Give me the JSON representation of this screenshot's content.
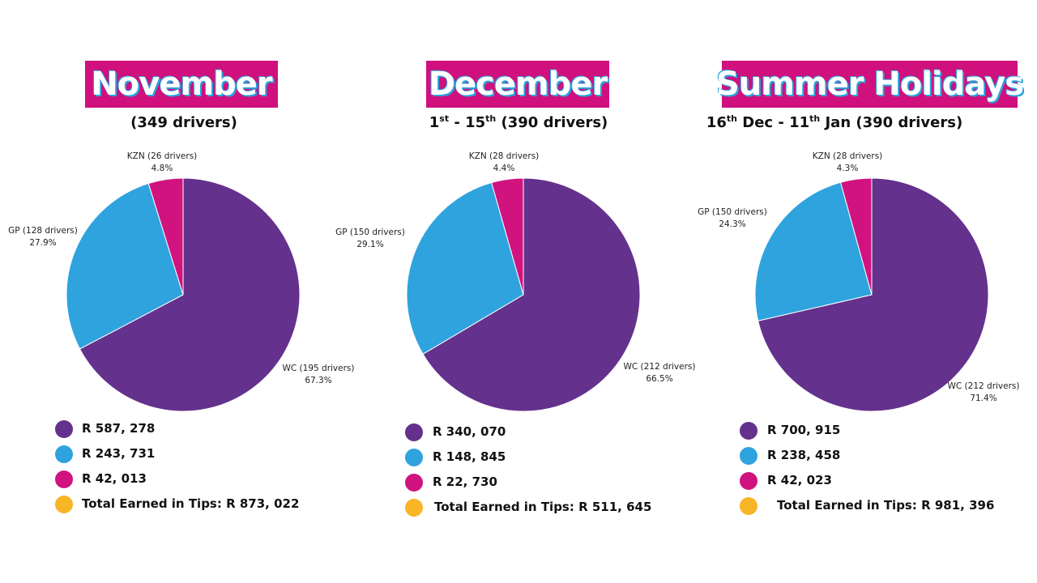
{
  "colors": {
    "banner": "#d0107d",
    "wc": "#64318c",
    "gp": "#2ea3de",
    "kzn": "#d0137f",
    "total": "#f8b526"
  },
  "chart_data": [
    {
      "type": "pie",
      "title": "November",
      "subtitle": {
        "pre": "",
        "sup1": "",
        "mid": "",
        "sup2": "",
        "post": "(349 drivers)"
      },
      "slices": [
        {
          "key": "wc",
          "name": "WC (195 drivers)",
          "pct_label": "67.3%",
          "value": 67.3
        },
        {
          "key": "gp",
          "name": "GP (128 drivers)",
          "pct_label": "27.9%",
          "value": 27.9
        },
        {
          "key": "kzn",
          "name": "KZN (26 drivers)",
          "pct_label": "4.8%",
          "value": 4.8
        }
      ],
      "legend": [
        {
          "key": "wc",
          "text": "R 587, 278"
        },
        {
          "key": "gp",
          "text": "R 243, 731"
        },
        {
          "key": "kzn",
          "text": "R 42, 013"
        },
        {
          "key": "total",
          "text": "Total Earned in Tips: R 873, 022"
        }
      ]
    },
    {
      "type": "pie",
      "title": "December",
      "subtitle": {
        "pre": "1",
        "sup1": "st",
        "mid": " - 15",
        "sup2": "th",
        "post": " (390 drivers)"
      },
      "slices": [
        {
          "key": "wc",
          "name": "WC (212 drivers)",
          "pct_label": "66.5%",
          "value": 66.5
        },
        {
          "key": "gp",
          "name": "GP (150 drivers)",
          "pct_label": "29.1%",
          "value": 29.1
        },
        {
          "key": "kzn",
          "name": "KZN (28 drivers)",
          "pct_label": "4.4%",
          "value": 4.4
        }
      ],
      "legend": [
        {
          "key": "wc",
          "text": "R 340, 070"
        },
        {
          "key": "gp",
          "text": "R 148, 845"
        },
        {
          "key": "kzn",
          "text": "R 22, 730"
        },
        {
          "key": "total",
          "text": "Total Earned in Tips: R 511, 645"
        }
      ]
    },
    {
      "type": "pie",
      "title": "Summer Holidays",
      "subtitle": {
        "pre": "16",
        "sup1": "th",
        "mid": " Dec - 11",
        "sup2": "th",
        "post": " Jan (390 drivers)"
      },
      "slices": [
        {
          "key": "wc",
          "name": "WC (212 drivers)",
          "pct_label": "71.4%",
          "value": 71.4
        },
        {
          "key": "gp",
          "name": "GP (150 drivers)",
          "pct_label": "24.3%",
          "value": 24.3
        },
        {
          "key": "kzn",
          "name": "KZN (28 drivers)",
          "pct_label": "4.3%",
          "value": 4.3
        }
      ],
      "legend": [
        {
          "key": "wc",
          "text": "R 700, 915"
        },
        {
          "key": "gp",
          "text": "R 238, 458"
        },
        {
          "key": "kzn",
          "text": "R 42, 023"
        },
        {
          "key": "total",
          "text": "Total Earned in Tips: R 981, 396"
        }
      ]
    }
  ]
}
